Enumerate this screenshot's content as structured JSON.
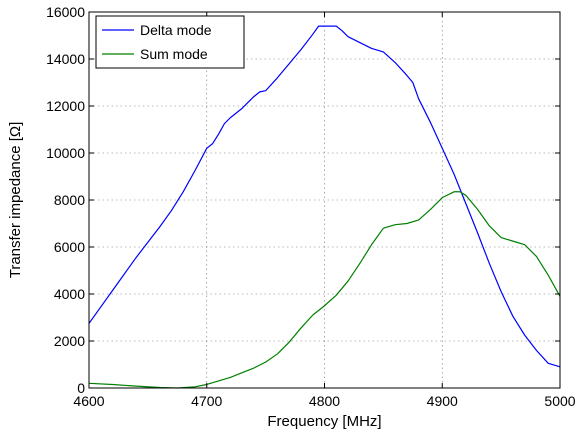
{
  "chart_data": {
    "type": "line",
    "title": "",
    "xlabel": "Frequency [MHz]",
    "ylabel": "Transfer impedance [Ω]",
    "xlim": [
      4600,
      5000
    ],
    "ylim": [
      0,
      16000
    ],
    "xticks": [
      4600,
      4700,
      4800,
      4900,
      5000
    ],
    "yticks": [
      0,
      2000,
      4000,
      6000,
      8000,
      10000,
      12000,
      14000,
      16000
    ],
    "grid": true,
    "legend_position": "top-left",
    "series": [
      {
        "name": "Delta mode",
        "color": "#0000ff",
        "x": [
          4600,
          4610,
          4620,
          4630,
          4640,
          4650,
          4660,
          4670,
          4680,
          4690,
          4700,
          4705,
          4710,
          4715,
          4720,
          4730,
          4740,
          4745,
          4750,
          4760,
          4770,
          4780,
          4790,
          4795,
          4800,
          4805,
          4810,
          4815,
          4820,
          4830,
          4840,
          4850,
          4860,
          4870,
          4875,
          4880,
          4890,
          4900,
          4910,
          4920,
          4930,
          4940,
          4950,
          4960,
          4970,
          4980,
          4990,
          5000
        ],
        "values": [
          2750,
          3450,
          4150,
          4850,
          5550,
          6200,
          6850,
          7550,
          8350,
          9250,
          10200,
          10400,
          10800,
          11250,
          11500,
          11900,
          12400,
          12600,
          12650,
          13200,
          13800,
          14400,
          15050,
          15400,
          15400,
          15400,
          15400,
          15200,
          14950,
          14700,
          14450,
          14300,
          13850,
          13300,
          13000,
          12300,
          11300,
          10200,
          9100,
          7850,
          6600,
          5300,
          4100,
          3050,
          2250,
          1600,
          1050,
          900
        ]
      },
      {
        "name": "Sum mode",
        "color": "#008000",
        "x": [
          4600,
          4620,
          4640,
          4660,
          4675,
          4690,
          4700,
          4710,
          4720,
          4730,
          4740,
          4750,
          4760,
          4770,
          4780,
          4790,
          4800,
          4810,
          4820,
          4830,
          4840,
          4850,
          4860,
          4870,
          4880,
          4890,
          4900,
          4910,
          4915,
          4920,
          4930,
          4940,
          4950,
          4960,
          4970,
          4980,
          4990,
          5000
        ],
        "values": [
          200,
          150,
          80,
          20,
          0,
          50,
          150,
          300,
          450,
          650,
          850,
          1100,
          1450,
          1950,
          2550,
          3100,
          3500,
          3950,
          4550,
          5300,
          6100,
          6800,
          6950,
          7000,
          7150,
          7600,
          8100,
          8350,
          8350,
          8200,
          7600,
          6900,
          6400,
          6250,
          6100,
          5600,
          4800,
          3900
        ]
      }
    ]
  }
}
